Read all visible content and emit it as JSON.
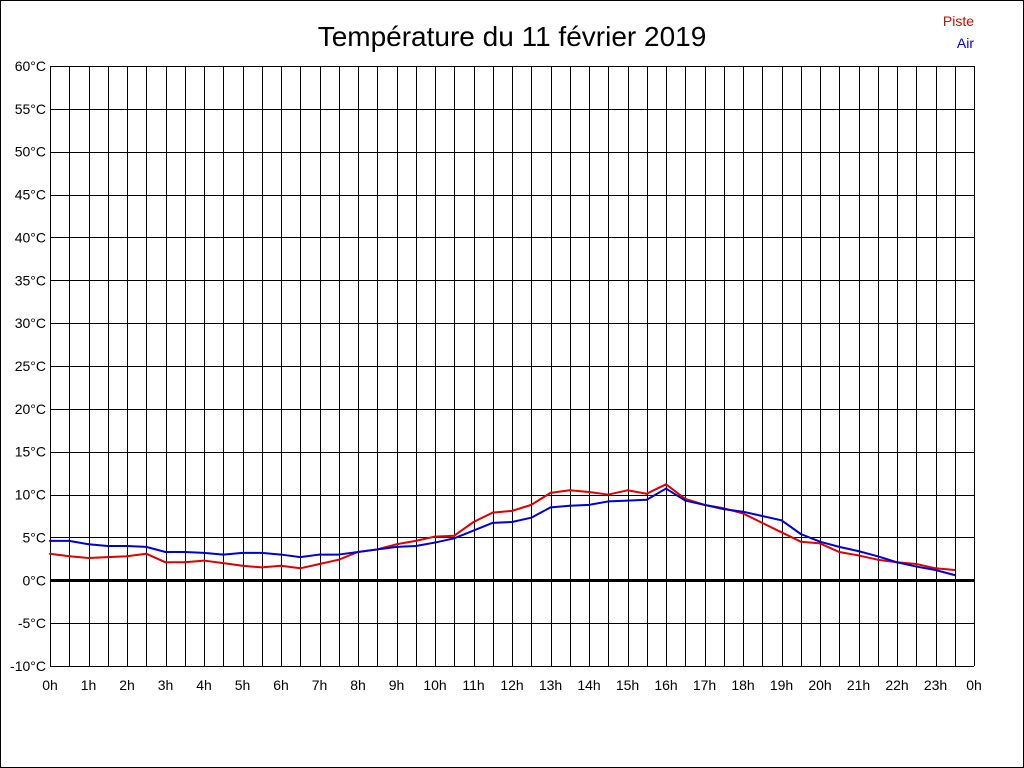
{
  "chart_data": {
    "type": "line",
    "title": "Température du 11 février 2019",
    "xlabel": "",
    "ylabel": "",
    "x_tick_labels": [
      "0h",
      "1h",
      "2h",
      "3h",
      "4h",
      "5h",
      "6h",
      "7h",
      "8h",
      "9h",
      "10h",
      "11h",
      "12h",
      "13h",
      "14h",
      "15h",
      "16h",
      "17h",
      "18h",
      "19h",
      "20h",
      "21h",
      "22h",
      "23h",
      "0h"
    ],
    "y_tick_labels": [
      "-10°C",
      "-5°C",
      "0°C",
      "5°C",
      "10°C",
      "15°C",
      "20°C",
      "25°C",
      "30°C",
      "35°C",
      "40°C",
      "45°C",
      "50°C",
      "55°C",
      "60°C"
    ],
    "xlim": [
      0,
      24
    ],
    "ylim": [
      -10,
      60
    ],
    "x_grid_step": 0.5,
    "y_grid_step": 5,
    "grid": true,
    "zero_line": true,
    "legend_position": "top-right",
    "series": [
      {
        "name": "Piste",
        "color": "#dd0000",
        "x": [
          0,
          0.5,
          1,
          1.5,
          2,
          2.5,
          3,
          3.5,
          4,
          4.5,
          5,
          5.5,
          6,
          6.5,
          7,
          7.5,
          8,
          8.5,
          9,
          9.5,
          10,
          10.5,
          11,
          11.5,
          12,
          12.5,
          13,
          13.5,
          14,
          14.5,
          15,
          15.5,
          16,
          16.5,
          17,
          17.5,
          18,
          18.5,
          19,
          19.5,
          20,
          20.5,
          21,
          21.5,
          22,
          22.5,
          23,
          23.5
        ],
        "values": [
          3.1,
          2.8,
          2.6,
          2.7,
          2.8,
          3.1,
          2.1,
          2.1,
          2.3,
          2.0,
          1.7,
          1.5,
          1.7,
          1.4,
          1.9,
          2.4,
          3.3,
          3.6,
          4.2,
          4.6,
          5.1,
          5.2,
          6.8,
          7.9,
          8.1,
          8.8,
          10.2,
          10.5,
          10.3,
          10.0,
          10.5,
          10.1,
          11.2,
          9.5,
          8.8,
          8.4,
          7.8,
          6.7,
          5.6,
          4.5,
          4.3,
          3.3,
          2.9,
          2.4,
          2.1,
          1.9,
          1.4,
          1.2
        ]
      },
      {
        "name": "Air",
        "color": "#0000cc",
        "x": [
          0,
          0.5,
          1,
          1.5,
          2,
          2.5,
          3,
          3.5,
          4,
          4.5,
          5,
          5.5,
          6,
          6.5,
          7,
          7.5,
          8,
          8.5,
          9,
          9.5,
          10,
          10.5,
          11,
          11.5,
          12,
          12.5,
          13,
          13.5,
          14,
          14.5,
          15,
          15.5,
          16,
          16.5,
          17,
          17.5,
          18,
          18.5,
          19,
          19.5,
          20,
          20.5,
          21,
          21.5,
          22,
          22.5,
          23,
          23.5
        ],
        "values": [
          4.6,
          4.6,
          4.2,
          4.0,
          4.0,
          3.9,
          3.3,
          3.3,
          3.2,
          3.0,
          3.2,
          3.2,
          3.0,
          2.7,
          3.0,
          3.0,
          3.3,
          3.6,
          3.9,
          4.0,
          4.4,
          4.9,
          5.8,
          6.7,
          6.8,
          7.3,
          8.5,
          8.7,
          8.8,
          9.2,
          9.3,
          9.4,
          10.7,
          9.3,
          8.8,
          8.3,
          8.0,
          7.5,
          7.0,
          5.4,
          4.5,
          3.9,
          3.4,
          2.8,
          2.1,
          1.6,
          1.2,
          0.6
        ]
      }
    ]
  }
}
